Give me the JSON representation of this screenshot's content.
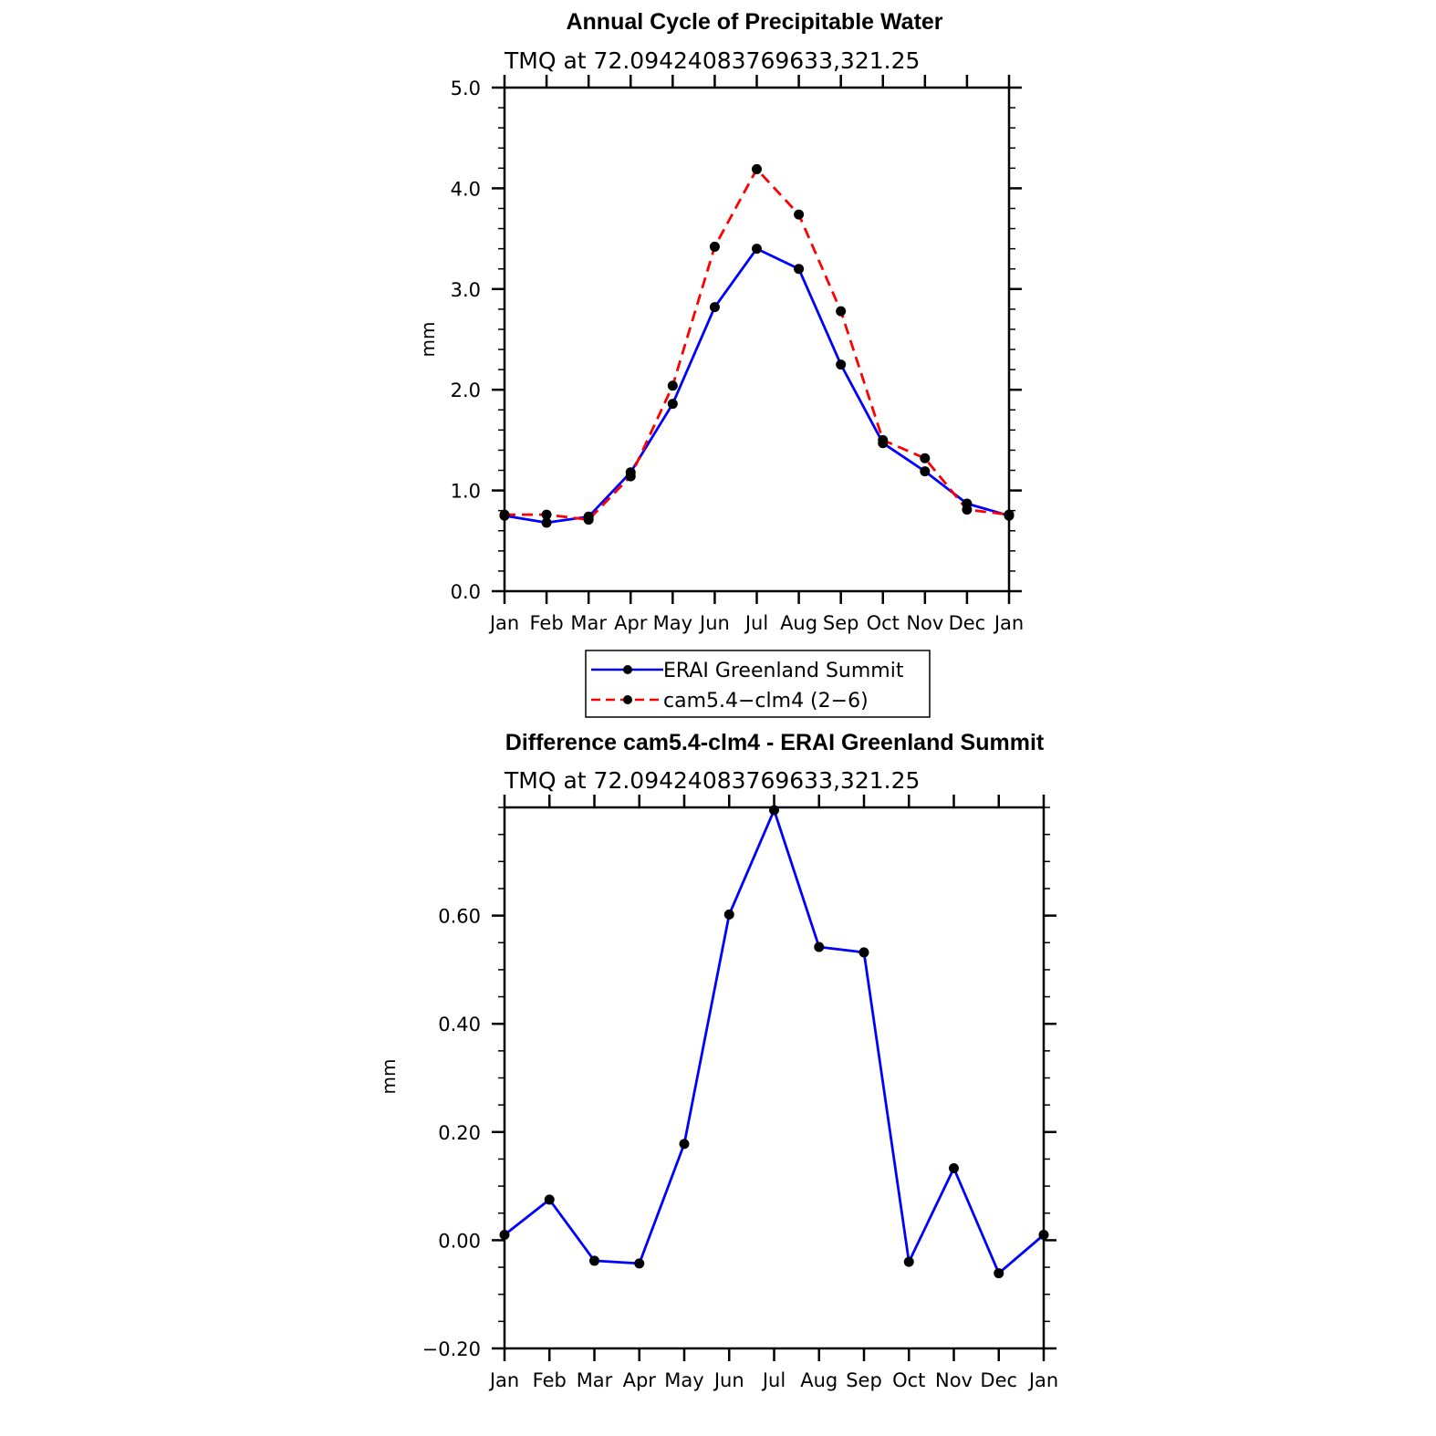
{
  "chart_data": [
    {
      "type": "line",
      "title": "Annual Cycle of Precipitable Water",
      "subtitle": "TMQ  at  72.09424083769633,321.25",
      "xlabel": "",
      "ylabel": "mm",
      "categories": [
        "Jan",
        "Feb",
        "Mar",
        "Apr",
        "May",
        "Jun",
        "Jul",
        "Aug",
        "Sep",
        "Oct",
        "Nov",
        "Dec",
        "Jan"
      ],
      "ylim": [
        0.0,
        5.0
      ],
      "yticks": [
        0.0,
        1.0,
        2.0,
        3.0,
        4.0,
        5.0
      ],
      "ytick_labels": [
        "0.0",
        "1.0",
        "2.0",
        "3.0",
        "4.0",
        "5.0"
      ],
      "series": [
        {
          "name": "ERAI Greenland Summit",
          "color": "#0000ff",
          "dash": "solid",
          "values": [
            0.75,
            0.68,
            0.74,
            1.18,
            1.86,
            2.82,
            3.4,
            3.2,
            2.25,
            1.47,
            1.19,
            0.87,
            0.75
          ]
        },
        {
          "name": "cam5.4−clm4 (2−6)",
          "color": "#ff0000",
          "dash": "dashed",
          "values": [
            0.76,
            0.76,
            0.71,
            1.14,
            2.04,
            3.42,
            4.19,
            3.74,
            2.78,
            1.5,
            1.32,
            0.81,
            0.76
          ]
        }
      ],
      "legend": {
        "entries": [
          "ERAI Greenland Summit",
          "cam5.4−clm4 (2−6)"
        ],
        "placement": "bottom-center"
      }
    },
    {
      "type": "line",
      "title": "Difference cam5.4-clm4 - ERAI Greenland Summit",
      "subtitle": "TMQ  at  72.09424083769633,321.25",
      "xlabel": "",
      "ylabel": "mm",
      "categories": [
        "Jan",
        "Feb",
        "Mar",
        "Apr",
        "May",
        "Jun",
        "Jul",
        "Aug",
        "Sep",
        "Oct",
        "Nov",
        "Dec",
        "Jan"
      ],
      "ylim": [
        -0.2,
        0.8
      ],
      "yticks": [
        -0.2,
        0.0,
        0.2,
        0.4,
        0.6
      ],
      "ytick_labels": [
        "−0.20",
        "0.00",
        "0.20",
        "0.40",
        "0.60"
      ],
      "series": [
        {
          "name": "Difference",
          "color": "#0000ff",
          "dash": "solid",
          "values": [
            0.01,
            0.075,
            -0.038,
            -0.043,
            0.178,
            0.602,
            0.795,
            0.542,
            0.532,
            -0.04,
            0.133,
            -0.061,
            0.01
          ]
        }
      ]
    }
  ]
}
